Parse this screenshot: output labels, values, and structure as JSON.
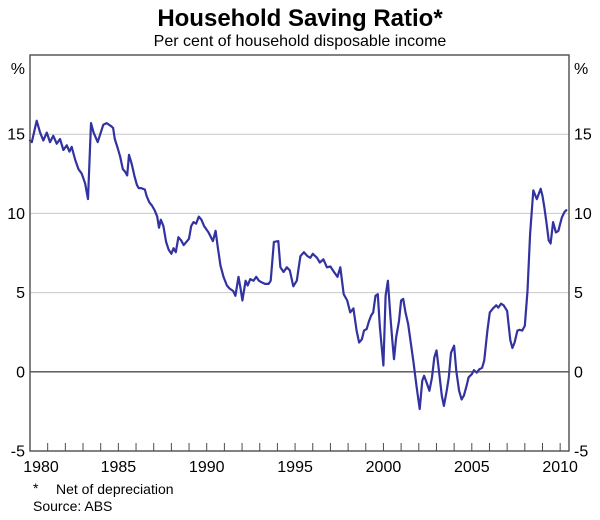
{
  "chart_data": {
    "type": "line",
    "title": "Household Saving Ratio*",
    "subtitle": "Per cent of household disposable income",
    "footnote_marker": "*",
    "footnote_text": "Net of depreciation",
    "source": "Source: ABS",
    "unit_label": "%",
    "xlabel": "",
    "ylabel": "%",
    "xlim": [
      1980,
      2010.5
    ],
    "ylim": [
      -5,
      20
    ],
    "y_ticks": [
      -5,
      0,
      5,
      10,
      15
    ],
    "y_gridlines": [
      5,
      10,
      15
    ],
    "zero_line": 0,
    "x_tick_interval": 1,
    "x_labels": [
      1980,
      1985,
      1990,
      1995,
      2000,
      2005,
      2010
    ],
    "grid_on": true,
    "legend": "none",
    "line_color": "#3232a0",
    "gridline_color": "#c9c9c9",
    "frame_color": "#4d4d4d",
    "points": [
      [
        1980.0,
        14.6
      ],
      [
        1980.1,
        14.5
      ],
      [
        1980.38,
        15.85
      ],
      [
        1980.57,
        15.1
      ],
      [
        1980.75,
        14.6
      ],
      [
        1980.95,
        15.1
      ],
      [
        1981.13,
        14.5
      ],
      [
        1981.32,
        14.9
      ],
      [
        1981.51,
        14.4
      ],
      [
        1981.7,
        14.7
      ],
      [
        1981.89,
        14.0
      ],
      [
        1982.08,
        14.3
      ],
      [
        1982.23,
        13.9
      ],
      [
        1982.36,
        14.2
      ],
      [
        1982.55,
        13.4
      ],
      [
        1982.74,
        12.8
      ],
      [
        1982.93,
        12.5
      ],
      [
        1983.12,
        11.9
      ],
      [
        1983.28,
        10.9
      ],
      [
        1983.45,
        15.7
      ],
      [
        1983.6,
        15.1
      ],
      [
        1983.83,
        14.5
      ],
      [
        1984.15,
        15.6
      ],
      [
        1984.34,
        15.7
      ],
      [
        1984.6,
        15.5
      ],
      [
        1984.7,
        15.4
      ],
      [
        1984.8,
        14.7
      ],
      [
        1984.97,
        14.1
      ],
      [
        1985.1,
        13.6
      ],
      [
        1985.25,
        12.8
      ],
      [
        1985.4,
        12.6
      ],
      [
        1985.5,
        12.4
      ],
      [
        1985.6,
        13.7
      ],
      [
        1985.76,
        13.1
      ],
      [
        1985.9,
        12.4
      ],
      [
        1986.05,
        11.8
      ],
      [
        1986.15,
        11.6
      ],
      [
        1986.3,
        11.6
      ],
      [
        1986.5,
        11.5
      ],
      [
        1986.6,
        11.1
      ],
      [
        1986.75,
        10.7
      ],
      [
        1986.9,
        10.5
      ],
      [
        1987.05,
        10.2
      ],
      [
        1987.2,
        9.8
      ],
      [
        1987.3,
        9.1
      ],
      [
        1987.4,
        9.6
      ],
      [
        1987.55,
        9.2
      ],
      [
        1987.7,
        8.2
      ],
      [
        1987.85,
        7.7
      ],
      [
        1988.0,
        7.45
      ],
      [
        1988.12,
        7.8
      ],
      [
        1988.25,
        7.55
      ],
      [
        1988.4,
        8.5
      ],
      [
        1988.55,
        8.3
      ],
      [
        1988.7,
        8.0
      ],
      [
        1988.85,
        8.2
      ],
      [
        1989.0,
        8.4
      ],
      [
        1989.12,
        9.2
      ],
      [
        1989.25,
        9.45
      ],
      [
        1989.4,
        9.35
      ],
      [
        1989.55,
        9.8
      ],
      [
        1989.7,
        9.6
      ],
      [
        1989.85,
        9.2
      ],
      [
        1990.1,
        8.8
      ],
      [
        1990.35,
        8.25
      ],
      [
        1990.5,
        8.9
      ],
      [
        1990.62,
        7.9
      ],
      [
        1990.78,
        6.7
      ],
      [
        1990.95,
        6.0
      ],
      [
        1991.14,
        5.45
      ],
      [
        1991.3,
        5.25
      ],
      [
        1991.5,
        5.1
      ],
      [
        1991.62,
        4.8
      ],
      [
        1991.8,
        6.0
      ],
      [
        1991.92,
        5.2
      ],
      [
        1992.02,
        4.5
      ],
      [
        1992.2,
        5.75
      ],
      [
        1992.32,
        5.45
      ],
      [
        1992.46,
        5.85
      ],
      [
        1992.65,
        5.75
      ],
      [
        1992.8,
        6.0
      ],
      [
        1992.95,
        5.75
      ],
      [
        1993.1,
        5.65
      ],
      [
        1993.3,
        5.55
      ],
      [
        1993.5,
        5.55
      ],
      [
        1993.62,
        5.75
      ],
      [
        1993.8,
        8.2
      ],
      [
        1994.05,
        8.25
      ],
      [
        1994.17,
        6.6
      ],
      [
        1994.35,
        6.3
      ],
      [
        1994.53,
        6.6
      ],
      [
        1994.7,
        6.4
      ],
      [
        1994.9,
        5.4
      ],
      [
        1995.1,
        5.75
      ],
      [
        1995.3,
        7.3
      ],
      [
        1995.5,
        7.55
      ],
      [
        1995.7,
        7.3
      ],
      [
        1995.86,
        7.2
      ],
      [
        1996.0,
        7.45
      ],
      [
        1996.24,
        7.2
      ],
      [
        1996.4,
        6.9
      ],
      [
        1996.6,
        7.1
      ],
      [
        1996.8,
        6.6
      ],
      [
        1997.0,
        6.65
      ],
      [
        1997.2,
        6.3
      ],
      [
        1997.4,
        6.0
      ],
      [
        1997.56,
        6.6
      ],
      [
        1997.75,
        4.9
      ],
      [
        1997.95,
        4.5
      ],
      [
        1998.12,
        3.75
      ],
      [
        1998.3,
        4.0
      ],
      [
        1998.48,
        2.6
      ],
      [
        1998.62,
        1.85
      ],
      [
        1998.78,
        2.05
      ],
      [
        1998.9,
        2.6
      ],
      [
        1999.05,
        2.7
      ],
      [
        1999.18,
        3.2
      ],
      [
        1999.3,
        3.55
      ],
      [
        1999.42,
        3.75
      ],
      [
        1999.55,
        4.8
      ],
      [
        1999.68,
        4.9
      ],
      [
        1999.8,
        2.8
      ],
      [
        2000.0,
        0.4
      ],
      [
        2000.12,
        4.8
      ],
      [
        2000.25,
        5.75
      ],
      [
        2000.4,
        3.4
      ],
      [
        2000.5,
        2.0
      ],
      [
        2000.6,
        0.8
      ],
      [
        2000.72,
        2.2
      ],
      [
        2000.88,
        3.2
      ],
      [
        2001.0,
        4.5
      ],
      [
        2001.12,
        4.6
      ],
      [
        2001.25,
        3.75
      ],
      [
        2001.4,
        3.0
      ],
      [
        2001.52,
        2.05
      ],
      [
        2001.7,
        0.6
      ],
      [
        2001.88,
        -1.0
      ],
      [
        2002.05,
        -2.35
      ],
      [
        2002.2,
        -0.55
      ],
      [
        2002.3,
        -0.25
      ],
      [
        2002.48,
        -0.8
      ],
      [
        2002.6,
        -1.2
      ],
      [
        2002.75,
        -0.35
      ],
      [
        2002.88,
        0.9
      ],
      [
        2003.0,
        1.35
      ],
      [
        2003.12,
        0.25
      ],
      [
        2003.3,
        -1.5
      ],
      [
        2003.42,
        -2.15
      ],
      [
        2003.58,
        -1.2
      ],
      [
        2003.7,
        -0.35
      ],
      [
        2003.82,
        1.2
      ],
      [
        2004.0,
        1.65
      ],
      [
        2004.12,
        0.05
      ],
      [
        2004.28,
        -1.2
      ],
      [
        2004.42,
        -1.75
      ],
      [
        2004.55,
        -1.5
      ],
      [
        2004.7,
        -0.9
      ],
      [
        2004.82,
        -0.35
      ],
      [
        2005.0,
        -0.15
      ],
      [
        2005.12,
        0.1
      ],
      [
        2005.28,
        -0.05
      ],
      [
        2005.42,
        0.15
      ],
      [
        2005.58,
        0.25
      ],
      [
        2005.7,
        0.7
      ],
      [
        2005.88,
        2.6
      ],
      [
        2006.02,
        3.75
      ],
      [
        2006.2,
        4.0
      ],
      [
        2006.38,
        4.2
      ],
      [
        2006.5,
        4.05
      ],
      [
        2006.65,
        4.3
      ],
      [
        2006.8,
        4.2
      ],
      [
        2007.0,
        3.85
      ],
      [
        2007.18,
        2.0
      ],
      [
        2007.3,
        1.5
      ],
      [
        2007.42,
        1.85
      ],
      [
        2007.58,
        2.6
      ],
      [
        2007.7,
        2.65
      ],
      [
        2007.85,
        2.6
      ],
      [
        2008.0,
        2.9
      ],
      [
        2008.15,
        5.1
      ],
      [
        2008.3,
        8.7
      ],
      [
        2008.48,
        11.45
      ],
      [
        2008.68,
        10.9
      ],
      [
        2008.9,
        11.55
      ],
      [
        2009.0,
        11.1
      ],
      [
        2009.1,
        10.4
      ],
      [
        2009.22,
        9.45
      ],
      [
        2009.35,
        8.3
      ],
      [
        2009.46,
        8.1
      ],
      [
        2009.6,
        9.45
      ],
      [
        2009.76,
        8.8
      ],
      [
        2009.9,
        8.9
      ],
      [
        2010.0,
        9.35
      ],
      [
        2010.1,
        9.75
      ],
      [
        2010.25,
        10.1
      ],
      [
        2010.35,
        10.2
      ]
    ]
  }
}
